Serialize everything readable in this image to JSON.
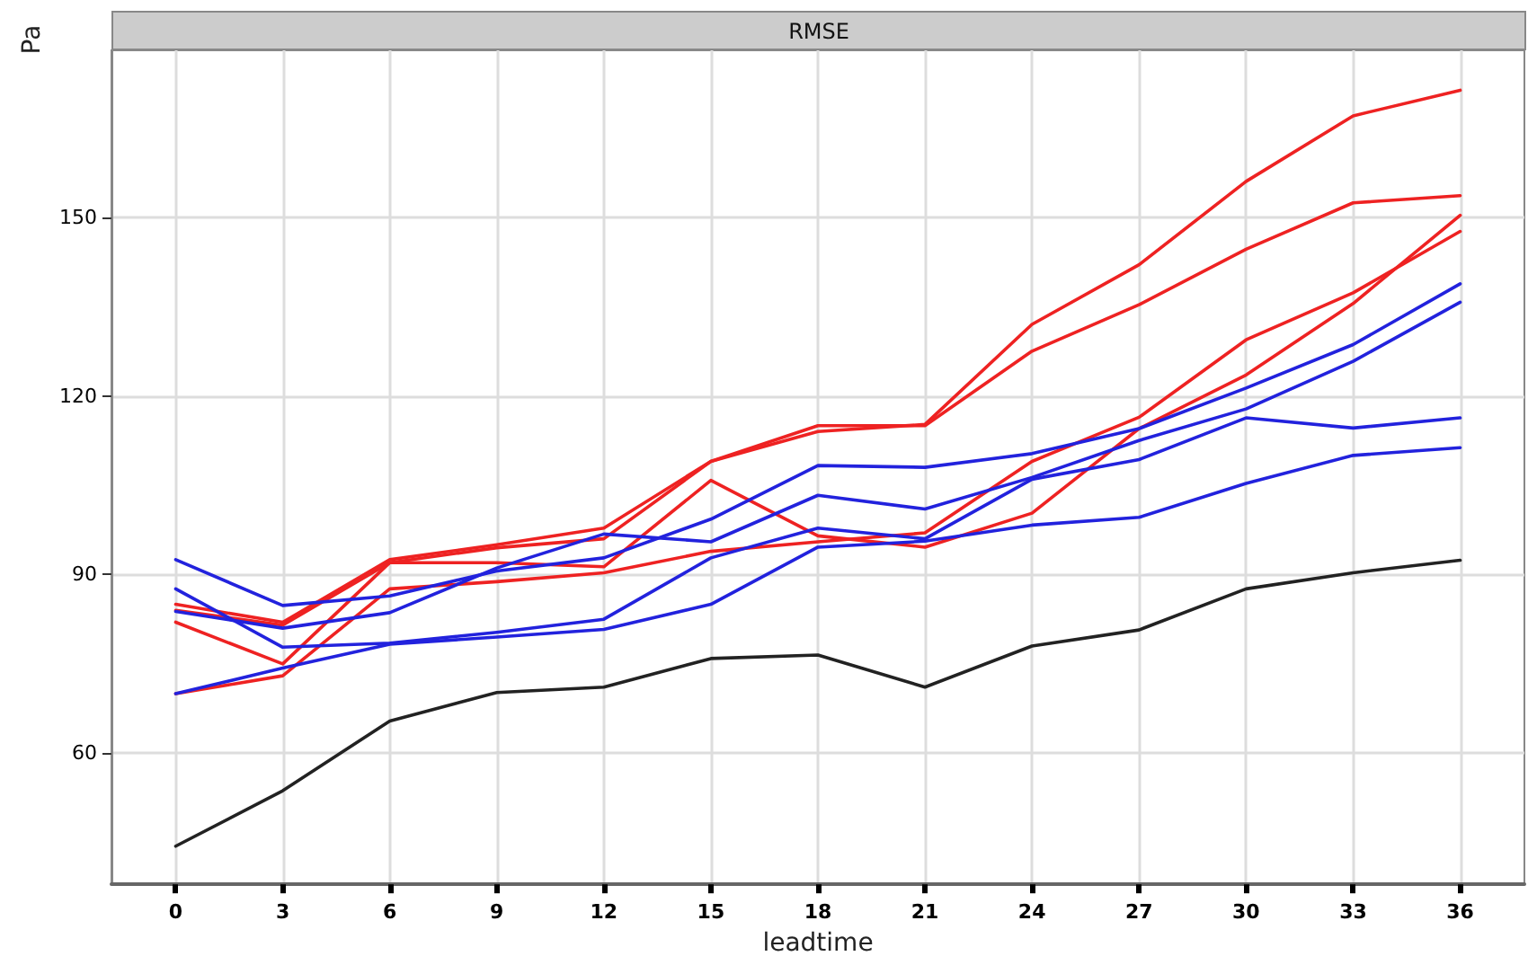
{
  "chart_data": {
    "type": "line",
    "title": "RMSE",
    "xlabel": "leadtime",
    "ylabel": "Pa",
    "x": [
      0,
      3,
      6,
      9,
      12,
      15,
      18,
      21,
      24,
      27,
      30,
      33,
      36
    ],
    "series": [
      {
        "color": "#ee2222",
        "values": [
          85,
          82,
          92.5,
          95,
          97.8,
          109,
          114,
          115.2,
          132,
          142,
          156,
          167,
          171.3
        ]
      },
      {
        "color": "#ee2222",
        "values": [
          84,
          81.5,
          92,
          94.5,
          96,
          109,
          115,
          115,
          127.5,
          135.3,
          144.6,
          152.4,
          153.6
        ]
      },
      {
        "color": "#ee2222",
        "values": [
          82,
          75,
          92,
          92,
          91.3,
          105.8,
          96.5,
          94.6,
          100.3,
          114.5,
          123.5,
          135.5,
          150.3
        ]
      },
      {
        "color": "#ee2222",
        "values": [
          70,
          73,
          87.6,
          88.8,
          90.3,
          93.9,
          95.5,
          97,
          109,
          116.4,
          129.4,
          137.3,
          147.6
        ]
      },
      {
        "color": "#2222dd",
        "values": [
          92.5,
          84.8,
          86.4,
          90.6,
          92.8,
          99.3,
          108.3,
          108,
          110.3,
          114.5,
          121.3,
          128.6,
          138.8
        ]
      },
      {
        "color": "#2222dd",
        "values": [
          83.8,
          81,
          83.6,
          91.1,
          96.8,
          95.5,
          103.3,
          101,
          106.3,
          112.5,
          117.8,
          125.8,
          135.7
        ]
      },
      {
        "color": "#2222dd",
        "values": [
          87.6,
          77.8,
          78.5,
          80.3,
          82.5,
          92.8,
          97.8,
          96,
          106,
          109.3,
          116.3,
          114.6,
          116.3
        ]
      },
      {
        "color": "#2222dd",
        "values": [
          70,
          74.3,
          78.3,
          79.5,
          80.8,
          85,
          94.6,
          95.6,
          98.3,
          99.6,
          105.3,
          110,
          111.3
        ]
      },
      {
        "color": "#222222",
        "values": [
          44.4,
          53.7,
          65.4,
          70.2,
          71.1,
          75.9,
          76.5,
          71.1,
          78,
          80.7,
          87.6,
          90.3,
          92.4
        ]
      }
    ],
    "xlim": [
      -1.8,
      37.8
    ],
    "xticks": [
      0,
      3,
      6,
      9,
      12,
      15,
      18,
      21,
      24,
      27,
      30,
      33,
      36
    ],
    "ylim": [
      38,
      178
    ],
    "yticks": [
      60,
      90,
      120,
      150
    ],
    "grid": true,
    "marker": "none",
    "line_style": "solid"
  }
}
